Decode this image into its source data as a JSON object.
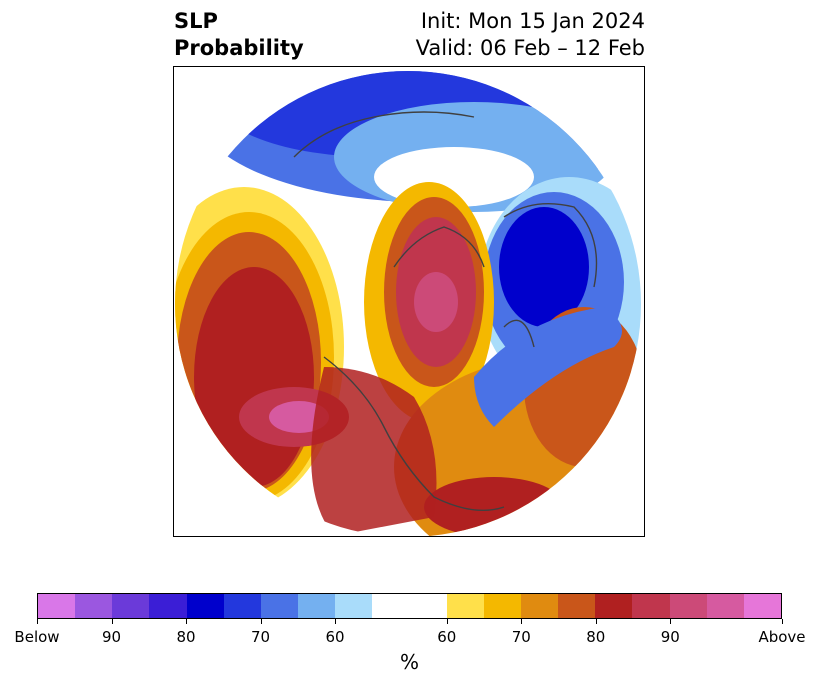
{
  "title": {
    "left_line1": "SLP",
    "left_line2": "Probability",
    "right_line1": "Init: Mon 15 Jan 2024",
    "right_line2": "Valid: 06 Feb – 12 Feb"
  },
  "colorbar": {
    "unit": "%",
    "below_colors": [
      "#d977e8",
      "#9b57e0",
      "#6b3ad9",
      "#3b1ed6",
      "#0000cc",
      "#2338dd",
      "#4a72e6",
      "#74b0f0",
      "#a9dcfa"
    ],
    "neutral_color": "#ffffff",
    "above_colors": [
      "#ffe04a",
      "#f4b800",
      "#e08b10",
      "#c9561a",
      "#b02020",
      "#c0364d",
      "#cc4a78",
      "#d65aa0",
      "#e676d9"
    ],
    "ticks": [
      "Below",
      "90",
      "80",
      "70",
      "60",
      "60",
      "70",
      "80",
      "90",
      "Above"
    ]
  }
}
